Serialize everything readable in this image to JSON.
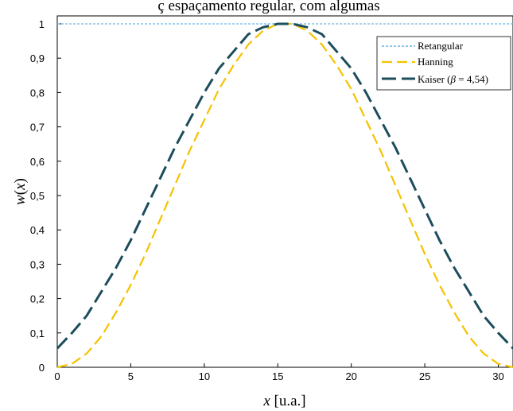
{
  "chart_data": {
    "type": "line",
    "title": "ç  espaçamento regular, com algumas",
    "xlabel": {
      "var": "x",
      "unit": " [u.a.]"
    },
    "ylabel": {
      "func": "w",
      "open": "(",
      "var": "x",
      "close": ")"
    },
    "xlim": [
      0,
      31
    ],
    "ylim": [
      0,
      1
    ],
    "xticks": [
      {
        "value": 0,
        "label": "0"
      },
      {
        "value": 5,
        "label": "5"
      },
      {
        "value": 10,
        "label": "10"
      },
      {
        "value": 15,
        "label": "15"
      },
      {
        "value": 20,
        "label": "20"
      },
      {
        "value": 25,
        "label": "25"
      },
      {
        "value": 30,
        "label": "30"
      }
    ],
    "yticks": [
      {
        "value": 0,
        "label": "0"
      },
      {
        "value": 0.1,
        "label": "0,1"
      },
      {
        "value": 0.2,
        "label": "0,2"
      },
      {
        "value": 0.3,
        "label": "0,3"
      },
      {
        "value": 0.4,
        "label": "0,4"
      },
      {
        "value": 0.5,
        "label": "0,5"
      },
      {
        "value": 0.6,
        "label": "0,6"
      },
      {
        "value": 0.7,
        "label": "0,7"
      },
      {
        "value": 0.8,
        "label": "0,8"
      },
      {
        "value": 0.9,
        "label": "0,9"
      },
      {
        "value": 1,
        "label": "1"
      }
    ],
    "grid": false,
    "legend_position": "top-right",
    "x": [
      0,
      1,
      2,
      3,
      4,
      5,
      6,
      7,
      8,
      9,
      10,
      11,
      12,
      13,
      14,
      15,
      16,
      17,
      18,
      19,
      20,
      21,
      22,
      23,
      24,
      25,
      26,
      27,
      28,
      29,
      30,
      31
    ],
    "series": [
      {
        "name": "Retangular",
        "color": "#6ab6e6",
        "dash": "dotted",
        "values": [
          1,
          1,
          1,
          1,
          1,
          1,
          1,
          1,
          1,
          1,
          1,
          1,
          1,
          1,
          1,
          1,
          1,
          1,
          1,
          1,
          1,
          1,
          1,
          1,
          1,
          1,
          1,
          1,
          1,
          1,
          1,
          1
        ]
      },
      {
        "name": "Hanning",
        "color": "#f5c200",
        "dash": "dashed",
        "values": [
          0,
          0.01,
          0.04,
          0.09,
          0.16,
          0.24,
          0.33,
          0.43,
          0.53,
          0.63,
          0.72,
          0.81,
          0.88,
          0.94,
          0.98,
          1,
          1,
          0.98,
          0.94,
          0.88,
          0.81,
          0.72,
          0.63,
          0.53,
          0.43,
          0.33,
          0.24,
          0.16,
          0.09,
          0.04,
          0.01,
          0
        ]
      },
      {
        "name": "Kaiser (β = 4,54)",
        "legend_parts": {
          "pre": "Kaiser (",
          "sym": "β",
          "post": " = 4,54)"
        },
        "color": "#1c4d5c",
        "dash": "long-dashed",
        "values": [
          0.055,
          0.1,
          0.15,
          0.22,
          0.29,
          0.37,
          0.46,
          0.55,
          0.64,
          0.72,
          0.8,
          0.87,
          0.92,
          0.97,
          0.99,
          1,
          1,
          0.99,
          0.97,
          0.92,
          0.87,
          0.8,
          0.72,
          0.64,
          0.55,
          0.46,
          0.37,
          0.29,
          0.22,
          0.15,
          0.1,
          0.055
        ]
      }
    ]
  }
}
